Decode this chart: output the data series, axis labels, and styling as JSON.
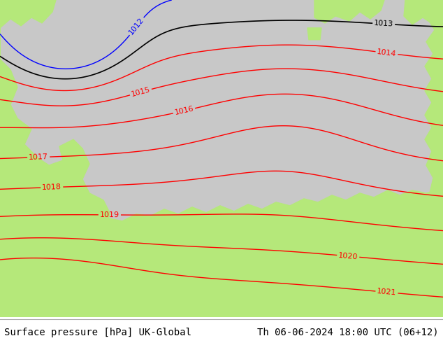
{
  "title_left": "Surface pressure [hPa] UK-Global",
  "title_right": "Th 06-06-2024 18:00 UTC (06+12)",
  "background_color": "#ffffff",
  "land_color": "#b5e87a",
  "sea_color": "#c8c8c8",
  "contour_color_red": "#ff0000",
  "contour_color_black": "#000000",
  "contour_color_blue": "#0000ff",
  "label_fontsize": 8,
  "footer_fontsize": 10,
  "fig_width": 6.34,
  "fig_height": 4.9,
  "dpi": 100
}
